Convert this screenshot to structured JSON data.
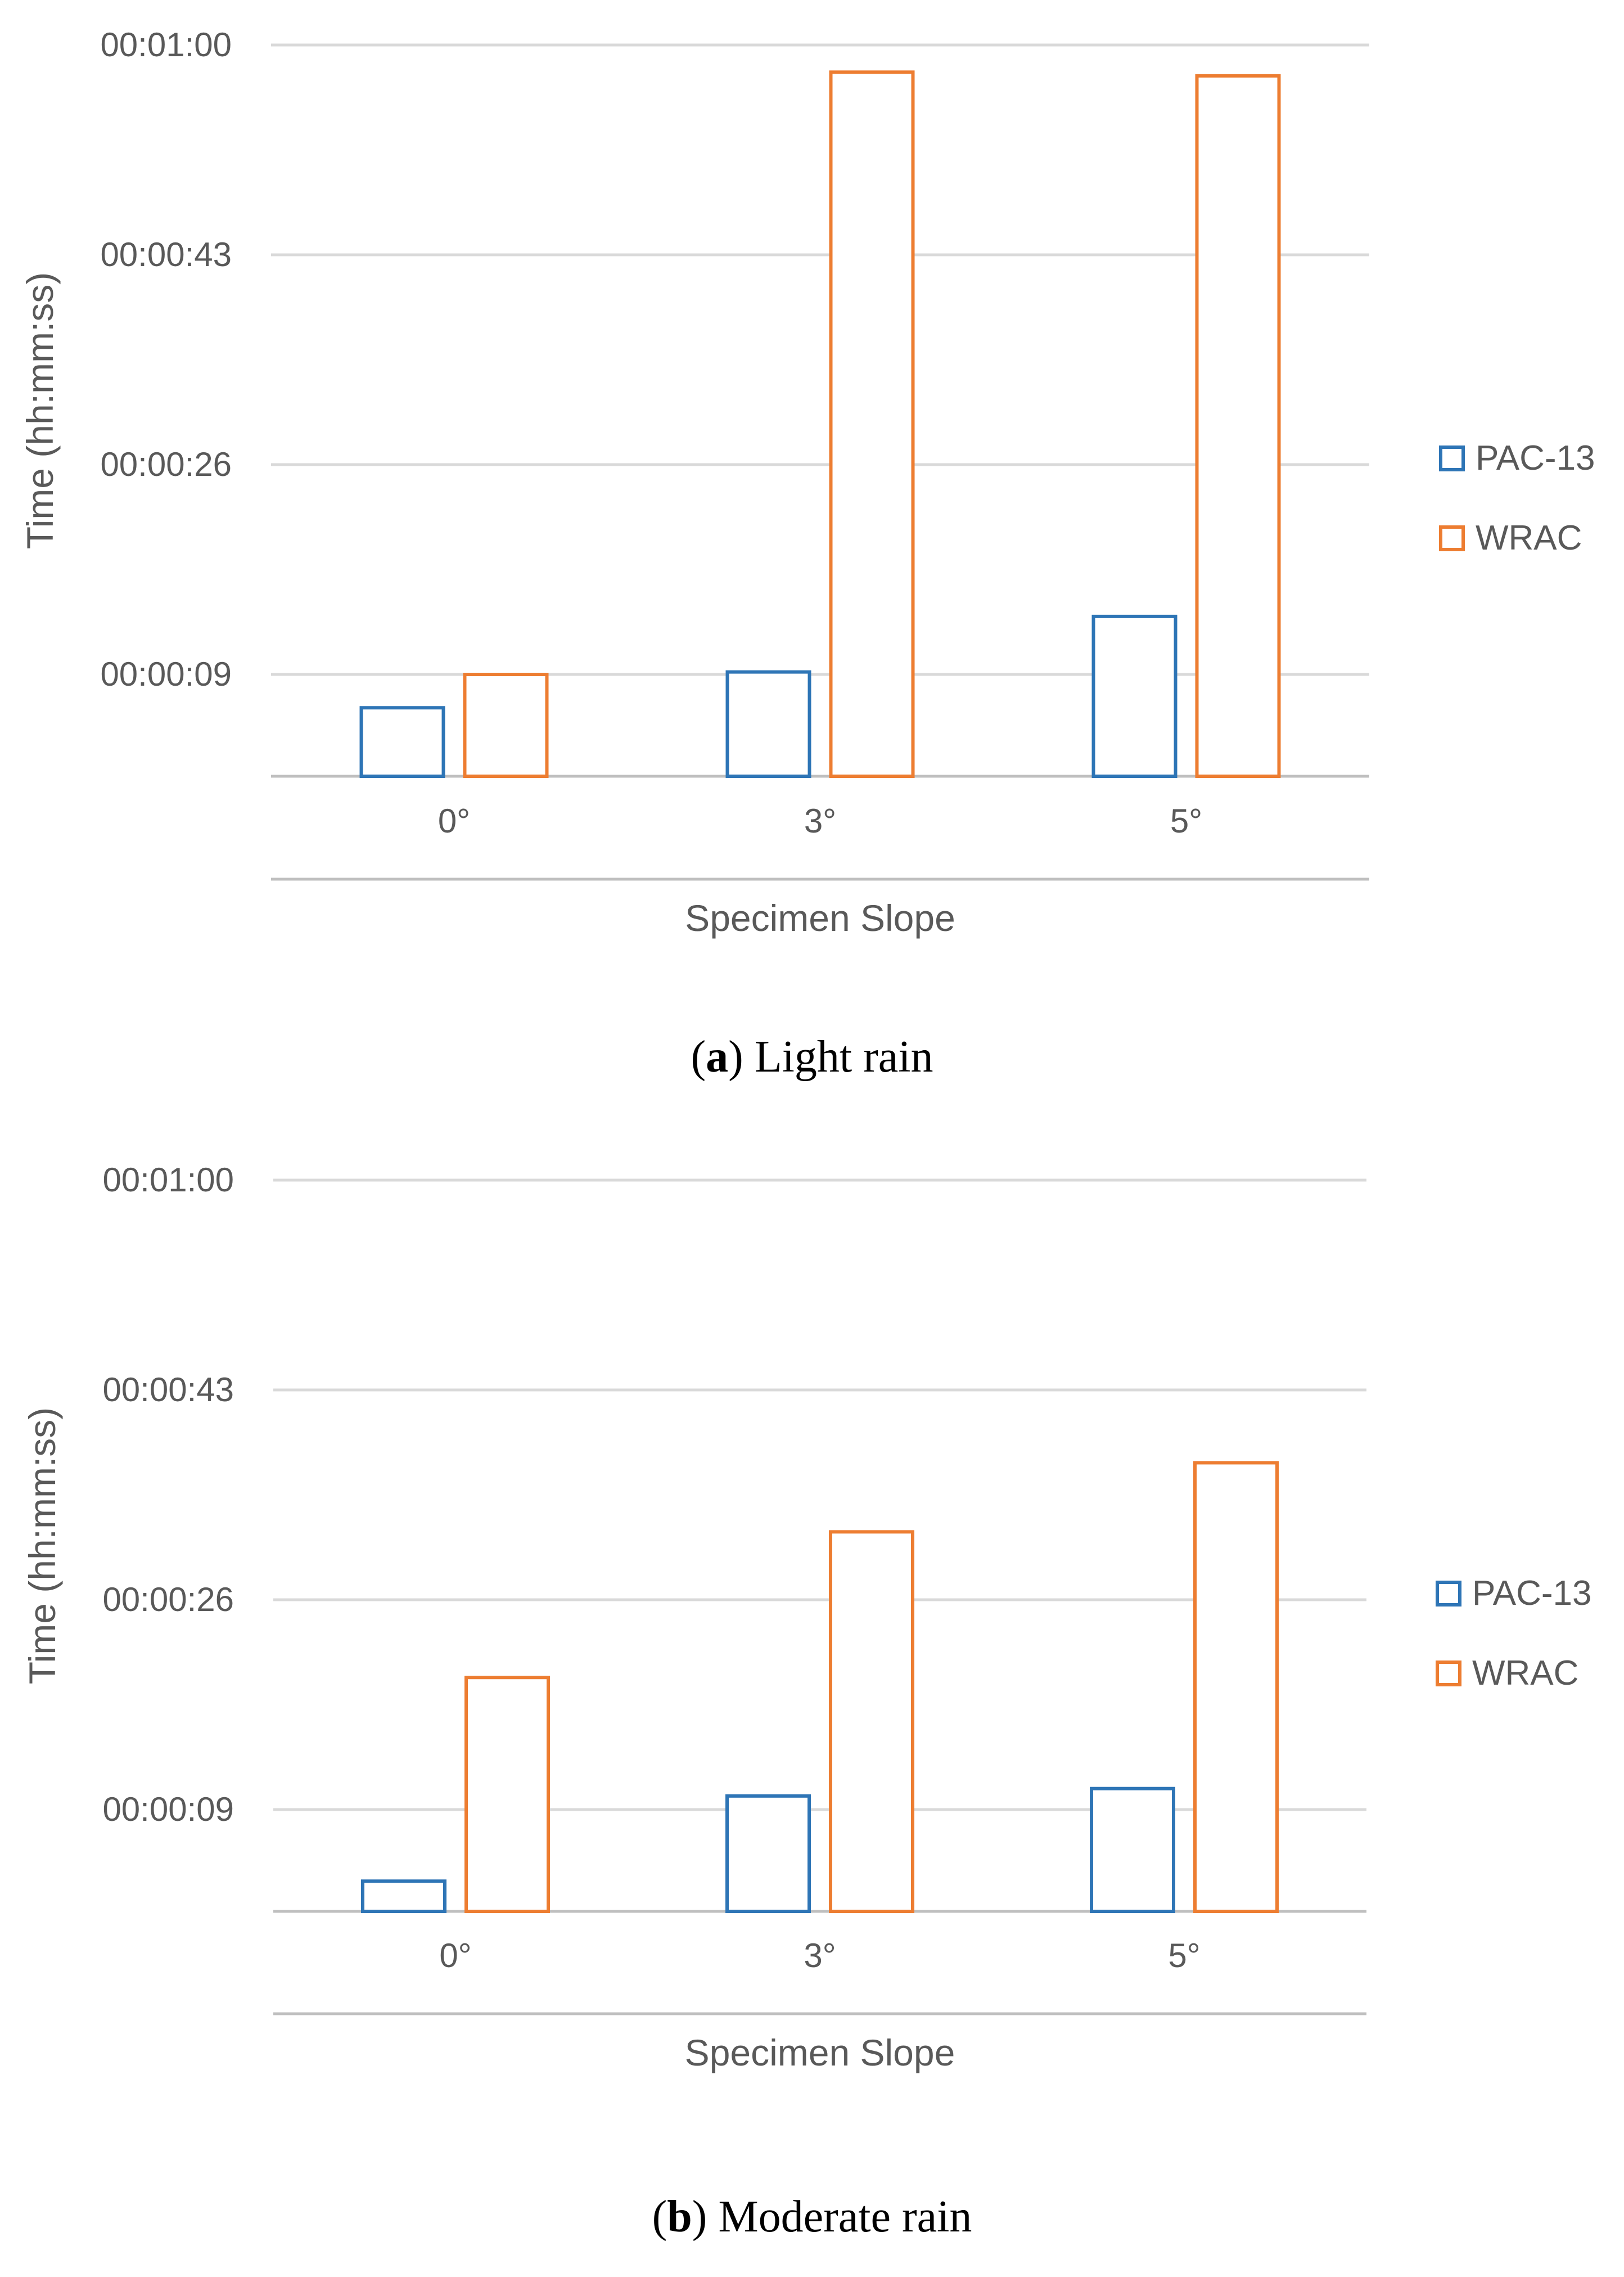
{
  "chart_data": [
    {
      "type": "bar",
      "caption": {
        "letter": "a",
        "text": "Light rain"
      },
      "xlabel": "Specimen Slope",
      "ylabel": "Time (hh:mm:ss)",
      "categories": [
        "0°",
        "3°",
        "5°"
      ],
      "y_unit": "seconds",
      "ylim": [
        0,
        60
      ],
      "yticks": [
        9,
        26,
        43,
        60
      ],
      "ytick_labels": [
        "00:00:09",
        "00:00:26",
        "00:00:43",
        "00:01:00"
      ],
      "legend_position": "right",
      "grid": true,
      "bar_style": "outline",
      "series": [
        {
          "name": "PAC-13",
          "color": "#2E75B6",
          "values": [
            6.3,
            9.2,
            13.7
          ]
        },
        {
          "name": "WRAC",
          "color": "#ED7D31",
          "values": [
            9.0,
            57.8,
            57.5
          ]
        }
      ]
    },
    {
      "type": "bar",
      "caption": {
        "letter": "b",
        "text": "Moderate rain"
      },
      "xlabel": "Specimen Slope",
      "ylabel": "Time (hh:mm:ss)",
      "categories": [
        "0°",
        "3°",
        "5°"
      ],
      "y_unit": "seconds",
      "ylim": [
        0,
        60
      ],
      "yticks": [
        9,
        26,
        43,
        60
      ],
      "ytick_labels": [
        "00:00:09",
        "00:00:26",
        "00:00:43",
        "00:01:00"
      ],
      "legend_position": "right",
      "grid": true,
      "bar_style": "outline",
      "series": [
        {
          "name": "PAC-13",
          "color": "#2E75B6",
          "values": [
            3.2,
            10.1,
            10.7
          ]
        },
        {
          "name": "WRAC",
          "color": "#ED7D31",
          "values": [
            19.7,
            31.5,
            37.1
          ]
        }
      ]
    }
  ]
}
